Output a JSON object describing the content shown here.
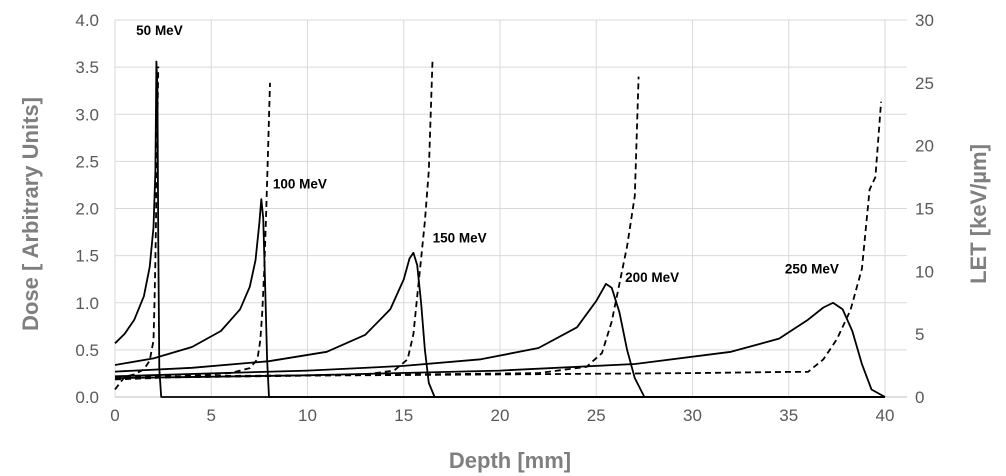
{
  "chart_data": {
    "type": "line",
    "xlabel": "Depth [mm]",
    "ylabel": "Dose [ Arbitrary Units]",
    "y2label": "LET [keV/µm]",
    "xlim": [
      0,
      40
    ],
    "ylim": [
      0,
      4
    ],
    "y2lim": [
      0,
      30
    ],
    "x_ticks": [
      0,
      5,
      10,
      15,
      20,
      25,
      30,
      35,
      40
    ],
    "y_ticks": [
      0.0,
      0.5,
      1.0,
      1.5,
      2.0,
      2.5,
      3.0,
      3.5,
      4.0
    ],
    "y_tick_labels": [
      "0.0",
      "0.5",
      "1.0",
      "1.5",
      "2.0",
      "2.5",
      "3.0",
      "3.5",
      "4.0"
    ],
    "y2_ticks": [
      0,
      5,
      10,
      15,
      20,
      25,
      30
    ],
    "grid": true,
    "colors": {
      "grid": "#d9d9d9",
      "line": "#000000",
      "text": "#595959",
      "axis_title": "#7f7f7f"
    },
    "series": [
      {
        "name": "50 MeV",
        "axis": "dose",
        "style": "solid",
        "x": [
          0,
          0.5,
          1.0,
          1.5,
          1.8,
          2.0,
          2.1,
          2.15,
          2.2,
          2.25,
          2.3,
          2.4,
          40
        ],
        "y": [
          0.57,
          0.67,
          0.82,
          1.07,
          1.38,
          1.8,
          2.4,
          3.56,
          3.3,
          1.6,
          0.3,
          0.0,
          0.0
        ]
      },
      {
        "name": "100 MeV",
        "axis": "dose",
        "style": "solid",
        "x": [
          0,
          2,
          4,
          5.5,
          6.5,
          7.0,
          7.3,
          7.5,
          7.6,
          7.7,
          7.8,
          7.9,
          8.0,
          40
        ],
        "y": [
          0.34,
          0.41,
          0.53,
          0.7,
          0.93,
          1.17,
          1.45,
          1.85,
          2.1,
          1.9,
          1.2,
          0.4,
          0.0,
          0.0
        ]
      },
      {
        "name": "150 MeV",
        "axis": "dose",
        "style": "solid",
        "x": [
          0,
          4,
          8,
          11,
          13,
          14.3,
          15.0,
          15.3,
          15.5,
          15.7,
          15.9,
          16.1,
          16.3,
          16.6,
          40
        ],
        "y": [
          0.27,
          0.31,
          0.38,
          0.48,
          0.66,
          0.93,
          1.25,
          1.47,
          1.53,
          1.4,
          1.0,
          0.5,
          0.15,
          0.0,
          0.0
        ]
      },
      {
        "name": "200 MeV",
        "axis": "dose",
        "style": "solid",
        "x": [
          0,
          5,
          10,
          15,
          19,
          22,
          24,
          25.0,
          25.5,
          25.8,
          26.2,
          26.6,
          27.0,
          27.5,
          40
        ],
        "y": [
          0.22,
          0.25,
          0.28,
          0.33,
          0.4,
          0.52,
          0.74,
          1.02,
          1.2,
          1.16,
          0.9,
          0.5,
          0.2,
          0.0,
          0.0
        ]
      },
      {
        "name": "250 MeV",
        "axis": "dose",
        "style": "solid",
        "x": [
          0,
          10,
          20,
          27,
          32,
          34.5,
          36,
          36.8,
          37.3,
          37.8,
          38.3,
          38.8,
          39.3,
          40
        ],
        "y": [
          0.2,
          0.23,
          0.28,
          0.35,
          0.48,
          0.62,
          0.82,
          0.95,
          1.0,
          0.93,
          0.7,
          0.35,
          0.08,
          0.0
        ]
      },
      {
        "name": "50 MeV",
        "axis": "let",
        "style": "dashed",
        "x": [
          0,
          0.5,
          1.0,
          1.5,
          1.8,
          2.0,
          2.05,
          2.1,
          2.15,
          2.2,
          2.25
        ],
        "y": [
          0.6,
          1.6,
          1.8,
          2.2,
          2.9,
          4.5,
          7.5,
          11.0,
          16.0,
          22.0,
          26.3
        ]
      },
      {
        "name": "100 MeV",
        "axis": "let",
        "style": "dashed",
        "x": [
          0,
          2,
          4,
          6,
          7.0,
          7.4,
          7.55,
          7.65,
          7.75,
          7.85,
          7.95,
          8.05
        ],
        "y": [
          1.4,
          1.5,
          1.7,
          1.9,
          2.3,
          3.0,
          4.5,
          6.8,
          10.0,
          14.5,
          19.5,
          25.0
        ]
      },
      {
        "name": "150 MeV",
        "axis": "let",
        "style": "dashed",
        "x": [
          0,
          5,
          10,
          13,
          14.5,
          15.2,
          15.5,
          15.7,
          15.9,
          16.1,
          16.3,
          16.5
        ],
        "y": [
          1.5,
          1.6,
          1.7,
          1.8,
          2.1,
          3.0,
          5.0,
          8.0,
          11.0,
          14.0,
          18.0,
          27.0
        ]
      },
      {
        "name": "200 MeV",
        "axis": "let",
        "style": "dashed",
        "x": [
          0,
          8,
          16,
          22,
          24.5,
          25.3,
          25.8,
          26.2,
          26.6,
          27.0,
          27.2
        ],
        "y": [
          1.6,
          1.7,
          1.8,
          1.9,
          2.4,
          3.5,
          6.0,
          9.0,
          12.0,
          16.0,
          25.5
        ]
      },
      {
        "name": "250 MeV",
        "axis": "let",
        "style": "dashed",
        "x": [
          0,
          10,
          20,
          30,
          35,
          36.0,
          36.8,
          37.5,
          38.2,
          38.8,
          39.2,
          39.5,
          39.8
        ],
        "y": [
          1.6,
          1.7,
          1.8,
          1.9,
          2.0,
          2.0,
          3.0,
          4.6,
          6.9,
          10.2,
          16.5,
          17.5,
          23.5
        ]
      }
    ],
    "annotations": [
      {
        "text": "50 MeV",
        "x": 1.1,
        "y": 3.84
      },
      {
        "text": "100 MeV",
        "x": 8.2,
        "y": 2.21
      },
      {
        "text": "150 MeV",
        "x": 16.5,
        "y": 1.64
      },
      {
        "text": "200 MeV",
        "x": 26.5,
        "y": 1.22
      },
      {
        "text": "250 MeV",
        "x": 34.8,
        "y": 1.31
      }
    ]
  }
}
